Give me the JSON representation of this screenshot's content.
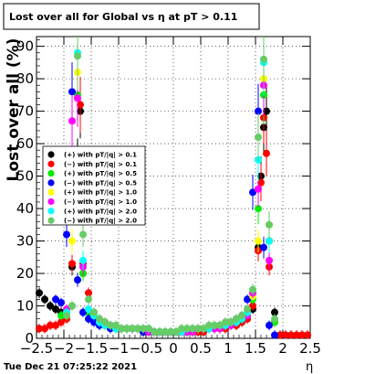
{
  "chart_data": {
    "type": "scatter",
    "title": "Lost over all for Global vs   η at pT > 0.11",
    "ylabel": "Lost over all (%)",
    "xlabel": "η",
    "xlim": [
      -2.5,
      2.5
    ],
    "ylim": [
      0,
      93
    ],
    "xticks": [
      "−2.5",
      "−2",
      "−1.5",
      "−1",
      "−0.5",
      "0",
      "0.5",
      "1",
      "1.5",
      "2",
      "2.5"
    ],
    "xtick_values": [
      -2.5,
      -2,
      -1.5,
      -1,
      -0.5,
      0,
      0.5,
      1,
      1.5,
      2,
      2.5
    ],
    "yticks": [
      "0",
      "10",
      "20",
      "30",
      "40",
      "50",
      "60",
      "70",
      "80",
      "90"
    ],
    "ytick_values": [
      0,
      10,
      20,
      30,
      40,
      50,
      60,
      70,
      80,
      90
    ],
    "grid": true,
    "legend_position": "left-middle",
    "timestamp": "Tue Dec 21 07:25:22 2021",
    "series": [
      {
        "name": "(+) with pT/|q| > 0.1",
        "color": "#000000",
        "x": [
          -2.45,
          -2.35,
          -2.25,
          -2.15,
          -2.05,
          -1.95,
          -1.85,
          -1.75,
          -1.7,
          -1.65,
          -1.55,
          -1.45,
          -1.35,
          -1.25,
          -1.15,
          -1.05,
          -0.95,
          -0.85,
          -0.75,
          -0.65,
          -0.55,
          -0.45,
          -0.35,
          -0.25,
          -0.15,
          -0.05,
          0.05,
          0.15,
          0.25,
          0.35,
          0.45,
          0.55,
          0.65,
          0.75,
          0.85,
          0.95,
          1.05,
          1.15,
          1.25,
          1.35,
          1.45,
          1.55,
          1.6,
          1.65,
          1.7,
          1.75,
          1.85,
          1.95,
          2.05,
          2.15,
          2.25,
          2.35,
          2.45
        ],
        "y": [
          14,
          12,
          10,
          9,
          8,
          7,
          22,
          55,
          70,
          20,
          8,
          6,
          5,
          4,
          4,
          3,
          3,
          3,
          3,
          3,
          2,
          2,
          2,
          2,
          2,
          2,
          2,
          2,
          2,
          2,
          2,
          2,
          3,
          3,
          3,
          3,
          4,
          4,
          5,
          6,
          9,
          28,
          50,
          65,
          70,
          30,
          8,
          1,
          1,
          1,
          1,
          1,
          1
        ]
      },
      {
        "name": "(−) with pT/|q| > 0.1",
        "color": "#ff0000",
        "x": [
          -2.45,
          -2.35,
          -2.25,
          -2.15,
          -2.05,
          -1.95,
          -1.85,
          -1.75,
          -1.7,
          -1.65,
          -1.55,
          -1.45,
          -1.35,
          -1.25,
          -1.15,
          -1.05,
          -0.95,
          -0.85,
          -0.75,
          -0.65,
          -0.55,
          -0.45,
          -0.35,
          -0.25,
          -0.15,
          -0.05,
          0.05,
          0.15,
          0.25,
          0.35,
          0.45,
          0.55,
          0.65,
          0.75,
          0.85,
          0.95,
          1.05,
          1.15,
          1.25,
          1.35,
          1.45,
          1.55,
          1.6,
          1.65,
          1.7,
          1.75,
          1.85,
          1.95,
          2.05,
          2.15,
          2.25,
          2.35,
          2.45
        ],
        "y": [
          3,
          3,
          4,
          4,
          5,
          6,
          23,
          50,
          72,
          23,
          14,
          8,
          6,
          5,
          4,
          3,
          3,
          3,
          3,
          3,
          2,
          2,
          2,
          2,
          2,
          2,
          2,
          2,
          2,
          2,
          2,
          2,
          3,
          3,
          3,
          3,
          4,
          4,
          5,
          6,
          10,
          27,
          48,
          68,
          57,
          22,
          5,
          1,
          1,
          1,
          1,
          1,
          1
        ]
      },
      {
        "name": "(+) with pT/|q| > 0.5",
        "color": "#00ee00",
        "x": [
          -2.05,
          -1.95,
          -1.85,
          -1.75,
          -1.65,
          -1.55,
          -1.45,
          -1.35,
          -1.25,
          -1.15,
          -1.05,
          -0.95,
          -0.85,
          -0.75,
          -0.65,
          -0.55,
          -0.45,
          -0.35,
          -0.25,
          -0.15,
          -0.05,
          0.05,
          0.15,
          0.25,
          0.35,
          0.45,
          0.55,
          0.65,
          0.75,
          0.85,
          0.95,
          1.05,
          1.15,
          1.25,
          1.35,
          1.45,
          1.55,
          1.65,
          1.75,
          1.85
        ],
        "y": [
          7,
          8,
          10,
          75,
          20,
          8,
          6,
          5,
          4,
          4,
          3,
          3,
          3,
          3,
          3,
          3,
          2,
          2,
          2,
          2,
          2,
          2,
          2,
          2,
          2,
          3,
          3,
          3,
          3,
          3,
          4,
          4,
          5,
          6,
          7,
          12,
          40,
          75,
          30,
          5
        ]
      },
      {
        "name": "(−) with pT/|q| > 0.5",
        "color": "#0000ff",
        "x": [
          -2.15,
          -2.05,
          -1.95,
          -1.85,
          -1.75,
          -1.65,
          -1.55,
          -1.45,
          -1.35,
          -1.25,
          -1.15,
          -1.05,
          -0.95,
          -0.85,
          -0.75,
          -0.65,
          -0.55,
          -0.45,
          -0.35,
          -0.25,
          -0.15,
          -0.05,
          0.05,
          0.15,
          0.25,
          0.35,
          0.45,
          0.55,
          0.65,
          0.75,
          0.85,
          0.95,
          1.05,
          1.15,
          1.25,
          1.35,
          1.45,
          1.55,
          1.65,
          1.75,
          1.85
        ],
        "y": [
          12,
          11,
          32,
          76,
          18,
          8,
          6,
          5,
          4,
          4,
          3,
          3,
          3,
          3,
          3,
          3,
          2,
          2,
          2,
          2,
          2,
          2,
          2,
          2,
          2,
          3,
          3,
          3,
          3,
          3,
          4,
          4,
          5,
          6,
          7,
          12,
          45,
          70,
          28,
          4,
          1
        ]
      },
      {
        "name": "(+) with pT/|q| > 1.0",
        "color": "#ffff00",
        "x": [
          -1.95,
          -1.85,
          -1.75,
          -1.65,
          -1.55,
          -1.45,
          -1.35,
          -1.25,
          -1.15,
          -1.05,
          -0.95,
          -0.85,
          -0.75,
          -0.65,
          -0.55,
          -0.45,
          -0.35,
          -0.25,
          -0.15,
          -0.05,
          0.05,
          0.15,
          0.25,
          0.35,
          0.45,
          0.55,
          0.65,
          0.75,
          0.85,
          0.95,
          1.05,
          1.15,
          1.25,
          1.35,
          1.45,
          1.55,
          1.65,
          1.75
        ],
        "y": [
          9,
          30,
          82,
          22,
          9,
          7,
          5,
          4,
          4,
          3,
          3,
          3,
          3,
          3,
          3,
          2,
          2,
          2,
          2,
          2,
          2,
          2,
          2,
          2,
          3,
          3,
          3,
          3,
          3,
          4,
          4,
          5,
          6,
          7,
          13,
          30,
          80,
          35
        ]
      },
      {
        "name": "(−) with pT/|q| > 1.0",
        "color": "#ff00ff",
        "x": [
          -1.95,
          -1.85,
          -1.75,
          -1.65,
          -1.55,
          -1.45,
          -1.35,
          -1.25,
          -1.15,
          -1.05,
          -0.95,
          -0.85,
          -0.75,
          -0.65,
          -0.55,
          -0.45,
          -0.35,
          -0.25,
          -0.15,
          -0.05,
          0.05,
          0.15,
          0.25,
          0.35,
          0.45,
          0.55,
          0.65,
          0.75,
          0.85,
          0.95,
          1.05,
          1.15,
          1.25,
          1.35,
          1.45,
          1.55,
          1.65,
          1.75
        ],
        "y": [
          9,
          67,
          74,
          22,
          9,
          7,
          5,
          4,
          4,
          3,
          3,
          3,
          3,
          3,
          3,
          2,
          2,
          2,
          2,
          2,
          2,
          2,
          2,
          2,
          3,
          3,
          3,
          3,
          3,
          4,
          4,
          5,
          6,
          7,
          14,
          46,
          78,
          24
        ]
      },
      {
        "name": "(+) with pT/|q| > 2.0",
        "color": "#00ffff",
        "x": [
          -1.95,
          -1.85,
          -1.75,
          -1.65,
          -1.55,
          -1.45,
          -1.35,
          -1.25,
          -1.15,
          -1.05,
          -0.95,
          -0.85,
          -0.75,
          -0.65,
          -0.55,
          -0.45,
          -0.35,
          -0.25,
          -0.15,
          -0.05,
          0.05,
          0.15,
          0.25,
          0.35,
          0.45,
          0.55,
          0.65,
          0.75,
          0.85,
          0.95,
          1.05,
          1.15,
          1.25,
          1.35,
          1.45,
          1.55,
          1.65,
          1.75
        ],
        "y": [
          8,
          45,
          88,
          24,
          9,
          7,
          5,
          4,
          4,
          3,
          3,
          3,
          3,
          3,
          3,
          3,
          2,
          2,
          2,
          2,
          2,
          2,
          3,
          3,
          3,
          3,
          3,
          4,
          4,
          4,
          5,
          5,
          6,
          8,
          15,
          55,
          85,
          30
        ]
      },
      {
        "name": "(−) with pT/|q| > 2.0",
        "color": "#66cc66",
        "x": [
          -1.95,
          -1.85,
          -1.75,
          -1.65,
          -1.55,
          -1.45,
          -1.35,
          -1.25,
          -1.15,
          -1.05,
          -0.95,
          -0.85,
          -0.75,
          -0.65,
          -0.55,
          -0.45,
          -0.35,
          -0.25,
          -0.15,
          -0.05,
          0.05,
          0.15,
          0.25,
          0.35,
          0.45,
          0.55,
          0.65,
          0.75,
          0.85,
          0.95,
          1.05,
          1.15,
          1.25,
          1.35,
          1.45,
          1.55,
          1.65,
          1.75,
          1.85
        ],
        "y": [
          7,
          10,
          87,
          32,
          12,
          8,
          6,
          5,
          4,
          4,
          3,
          3,
          3,
          3,
          3,
          3,
          2,
          2,
          2,
          2,
          2,
          3,
          3,
          3,
          3,
          3,
          4,
          4,
          4,
          5,
          5,
          6,
          7,
          9,
          15,
          62,
          86,
          35,
          6
        ]
      }
    ]
  }
}
